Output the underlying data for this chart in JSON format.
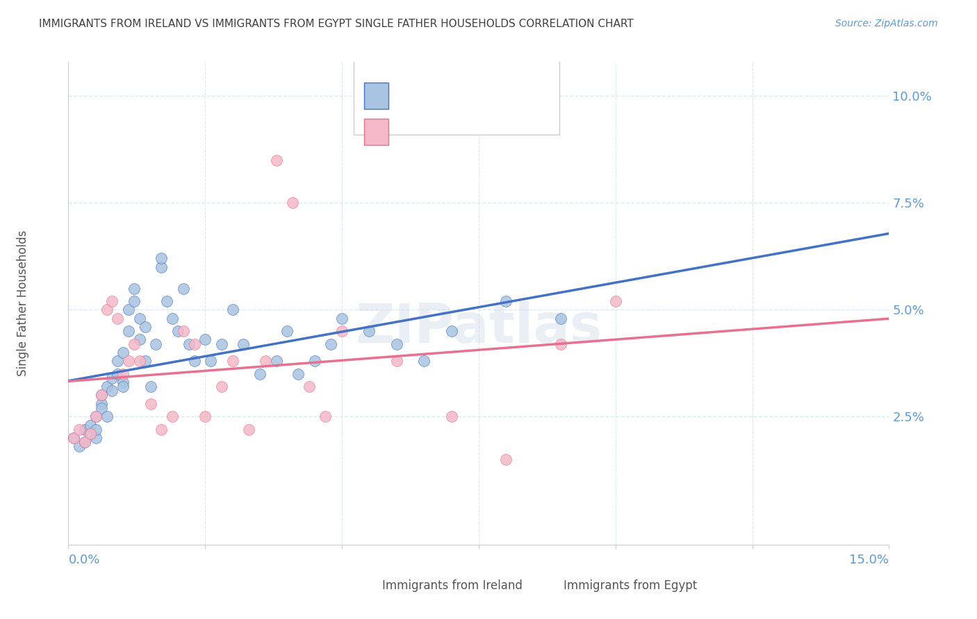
{
  "title": "IMMIGRANTS FROM IRELAND VS IMMIGRANTS FROM EGYPT SINGLE FATHER HOUSEHOLDS CORRELATION CHART",
  "source": "Source: ZipAtlas.com",
  "ylabel": "Single Father Households",
  "ylabel_right_ticks": [
    "2.5%",
    "5.0%",
    "7.5%",
    "10.0%"
  ],
  "ylabel_right_vals": [
    0.025,
    0.05,
    0.075,
    0.1
  ],
  "xlim": [
    0.0,
    0.15
  ],
  "ylim": [
    -0.005,
    0.108
  ],
  "color_ireland": "#a8c4e0",
  "color_ireland_line": "#4472c4",
  "color_egypt": "#f4b8c8",
  "color_egypt_line": "#e87090",
  "color_dashed": "#b0c8dc",
  "background": "#ffffff",
  "grid_color": "#dce8f0",
  "title_color": "#404040",
  "axis_color": "#5b9bd5",
  "watermark": "ZIPatlas",
  "ireland_x": [
    0.001,
    0.002,
    0.003,
    0.003,
    0.004,
    0.004,
    0.005,
    0.005,
    0.005,
    0.006,
    0.006,
    0.006,
    0.007,
    0.007,
    0.008,
    0.008,
    0.009,
    0.009,
    0.01,
    0.01,
    0.01,
    0.011,
    0.011,
    0.012,
    0.012,
    0.013,
    0.013,
    0.014,
    0.014,
    0.015,
    0.016,
    0.017,
    0.017,
    0.018,
    0.019,
    0.02,
    0.021,
    0.022,
    0.023,
    0.025,
    0.026,
    0.028,
    0.03,
    0.032,
    0.035,
    0.038,
    0.04,
    0.042,
    0.045,
    0.048,
    0.05,
    0.055,
    0.06,
    0.065,
    0.07,
    0.08,
    0.09
  ],
  "ireland_y": [
    0.02,
    0.018,
    0.022,
    0.019,
    0.021,
    0.023,
    0.02,
    0.025,
    0.022,
    0.028,
    0.027,
    0.03,
    0.032,
    0.025,
    0.034,
    0.031,
    0.035,
    0.038,
    0.033,
    0.032,
    0.04,
    0.045,
    0.05,
    0.055,
    0.052,
    0.048,
    0.043,
    0.046,
    0.038,
    0.032,
    0.042,
    0.06,
    0.062,
    0.052,
    0.048,
    0.045,
    0.055,
    0.042,
    0.038,
    0.043,
    0.038,
    0.042,
    0.05,
    0.042,
    0.035,
    0.038,
    0.045,
    0.035,
    0.038,
    0.042,
    0.048,
    0.045,
    0.042,
    0.038,
    0.045,
    0.052,
    0.048
  ],
  "egypt_x": [
    0.001,
    0.002,
    0.003,
    0.004,
    0.005,
    0.006,
    0.007,
    0.008,
    0.009,
    0.01,
    0.011,
    0.012,
    0.013,
    0.015,
    0.017,
    0.019,
    0.021,
    0.023,
    0.025,
    0.028,
    0.03,
    0.033,
    0.036,
    0.038,
    0.041,
    0.044,
    0.047,
    0.05,
    0.06,
    0.07,
    0.08,
    0.09,
    0.1
  ],
  "egypt_y": [
    0.02,
    0.022,
    0.019,
    0.021,
    0.025,
    0.03,
    0.05,
    0.052,
    0.048,
    0.035,
    0.038,
    0.042,
    0.038,
    0.028,
    0.022,
    0.025,
    0.045,
    0.042,
    0.025,
    0.032,
    0.038,
    0.022,
    0.038,
    0.085,
    0.075,
    0.032,
    0.025,
    0.045,
    0.038,
    0.025,
    0.015,
    0.042,
    0.052
  ],
  "xtick_vals": [
    0.0,
    0.025,
    0.05,
    0.075,
    0.1,
    0.125,
    0.15
  ]
}
